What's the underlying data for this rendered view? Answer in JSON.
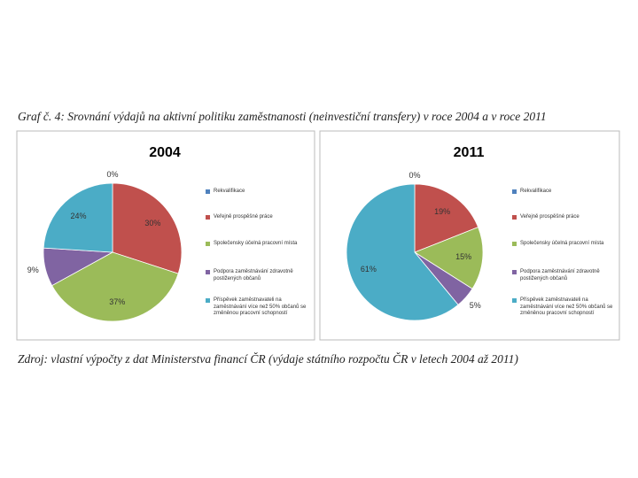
{
  "caption": "Graf č. 4: Srovnání výdajů na aktivní politiku zaměstnanosti (neinvestiční transfery) v roce 2004 a v roce 2011",
  "source": "Zdroj: vlastní výpočty z dat Ministerstva financí ČR (výdaje státního rozpočtu ČR v letech 2004 až 2011)",
  "chart_data": [
    {
      "type": "pie",
      "title": "2004",
      "categories": [
        "Rekvalifikace",
        "Veřejně prospěšné práce",
        "Společensky účelná pracovní místa",
        "Podpora zaměstnávání zdravotně postižených občanů",
        "Příspěvek zaměstnavateli na zaměstnávání více než 50% občanů se změněnou pracovní schopností"
      ],
      "values": [
        0,
        30,
        37,
        9,
        24
      ],
      "value_labels": [
        "0%",
        "30%",
        "37%",
        "9%",
        "24%"
      ],
      "colors": [
        "#4f81bd",
        "#c0504d",
        "#9bbb59",
        "#8064a2",
        "#4bacc6"
      ],
      "legend": "right"
    },
    {
      "type": "pie",
      "title": "2011",
      "categories": [
        "Rekvalifikace",
        "Veřejně prospěšné práce",
        "Společensky účelná pracovní místa",
        "Podpora zaměstnávání zdravotně postižených občanů",
        "Příspěvek zaměstnavateli na zaměstnávání více než 50% občanů se změněnou pracovní schopností"
      ],
      "values": [
        0,
        19,
        15,
        5,
        61
      ],
      "value_labels": [
        "0%",
        "19%",
        "15%",
        "5%",
        "61%"
      ],
      "colors": [
        "#4f81bd",
        "#c0504d",
        "#9bbb59",
        "#8064a2",
        "#4bacc6"
      ],
      "legend": "right"
    }
  ]
}
